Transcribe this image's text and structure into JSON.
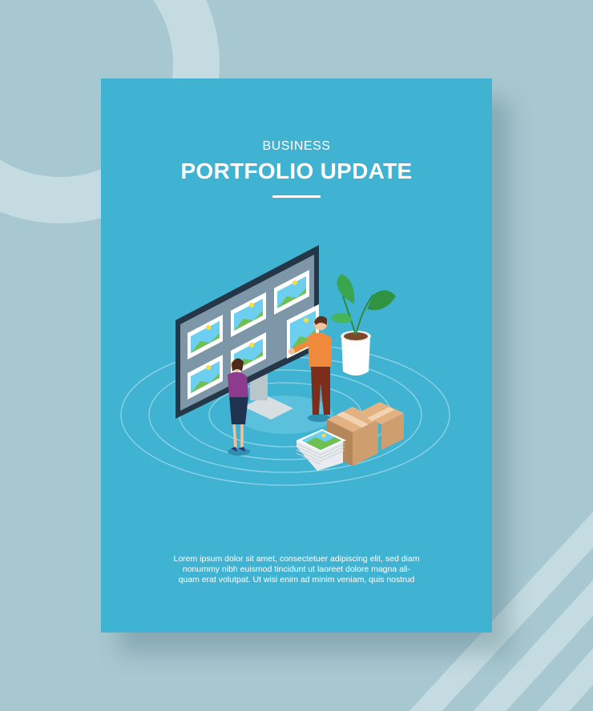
{
  "flyer": {
    "kicker": "BUSINESS",
    "title": "PORTFOLIO UPDATE",
    "body_lines": [
      "Lorem ipsum dolor sit amet, consectetuer adipiscing elit, sed diam",
      "nonummy nibh euismod tincidunt ut laoreet dolore magna ali-",
      "quam erat volutpat. Ut wisi enim ad minim veniam, quis nostrud"
    ]
  },
  "colors": {
    "background": "#a8c8d1",
    "flyer": "#40b3d3",
    "text": "#ffffff"
  },
  "illustration": {
    "icons": [
      "monitor-icon",
      "image-thumbnail-icon",
      "woman-figure-icon",
      "man-figure-icon",
      "potted-plant-icon",
      "cardboard-box-icon",
      "photo-stack-icon"
    ]
  }
}
